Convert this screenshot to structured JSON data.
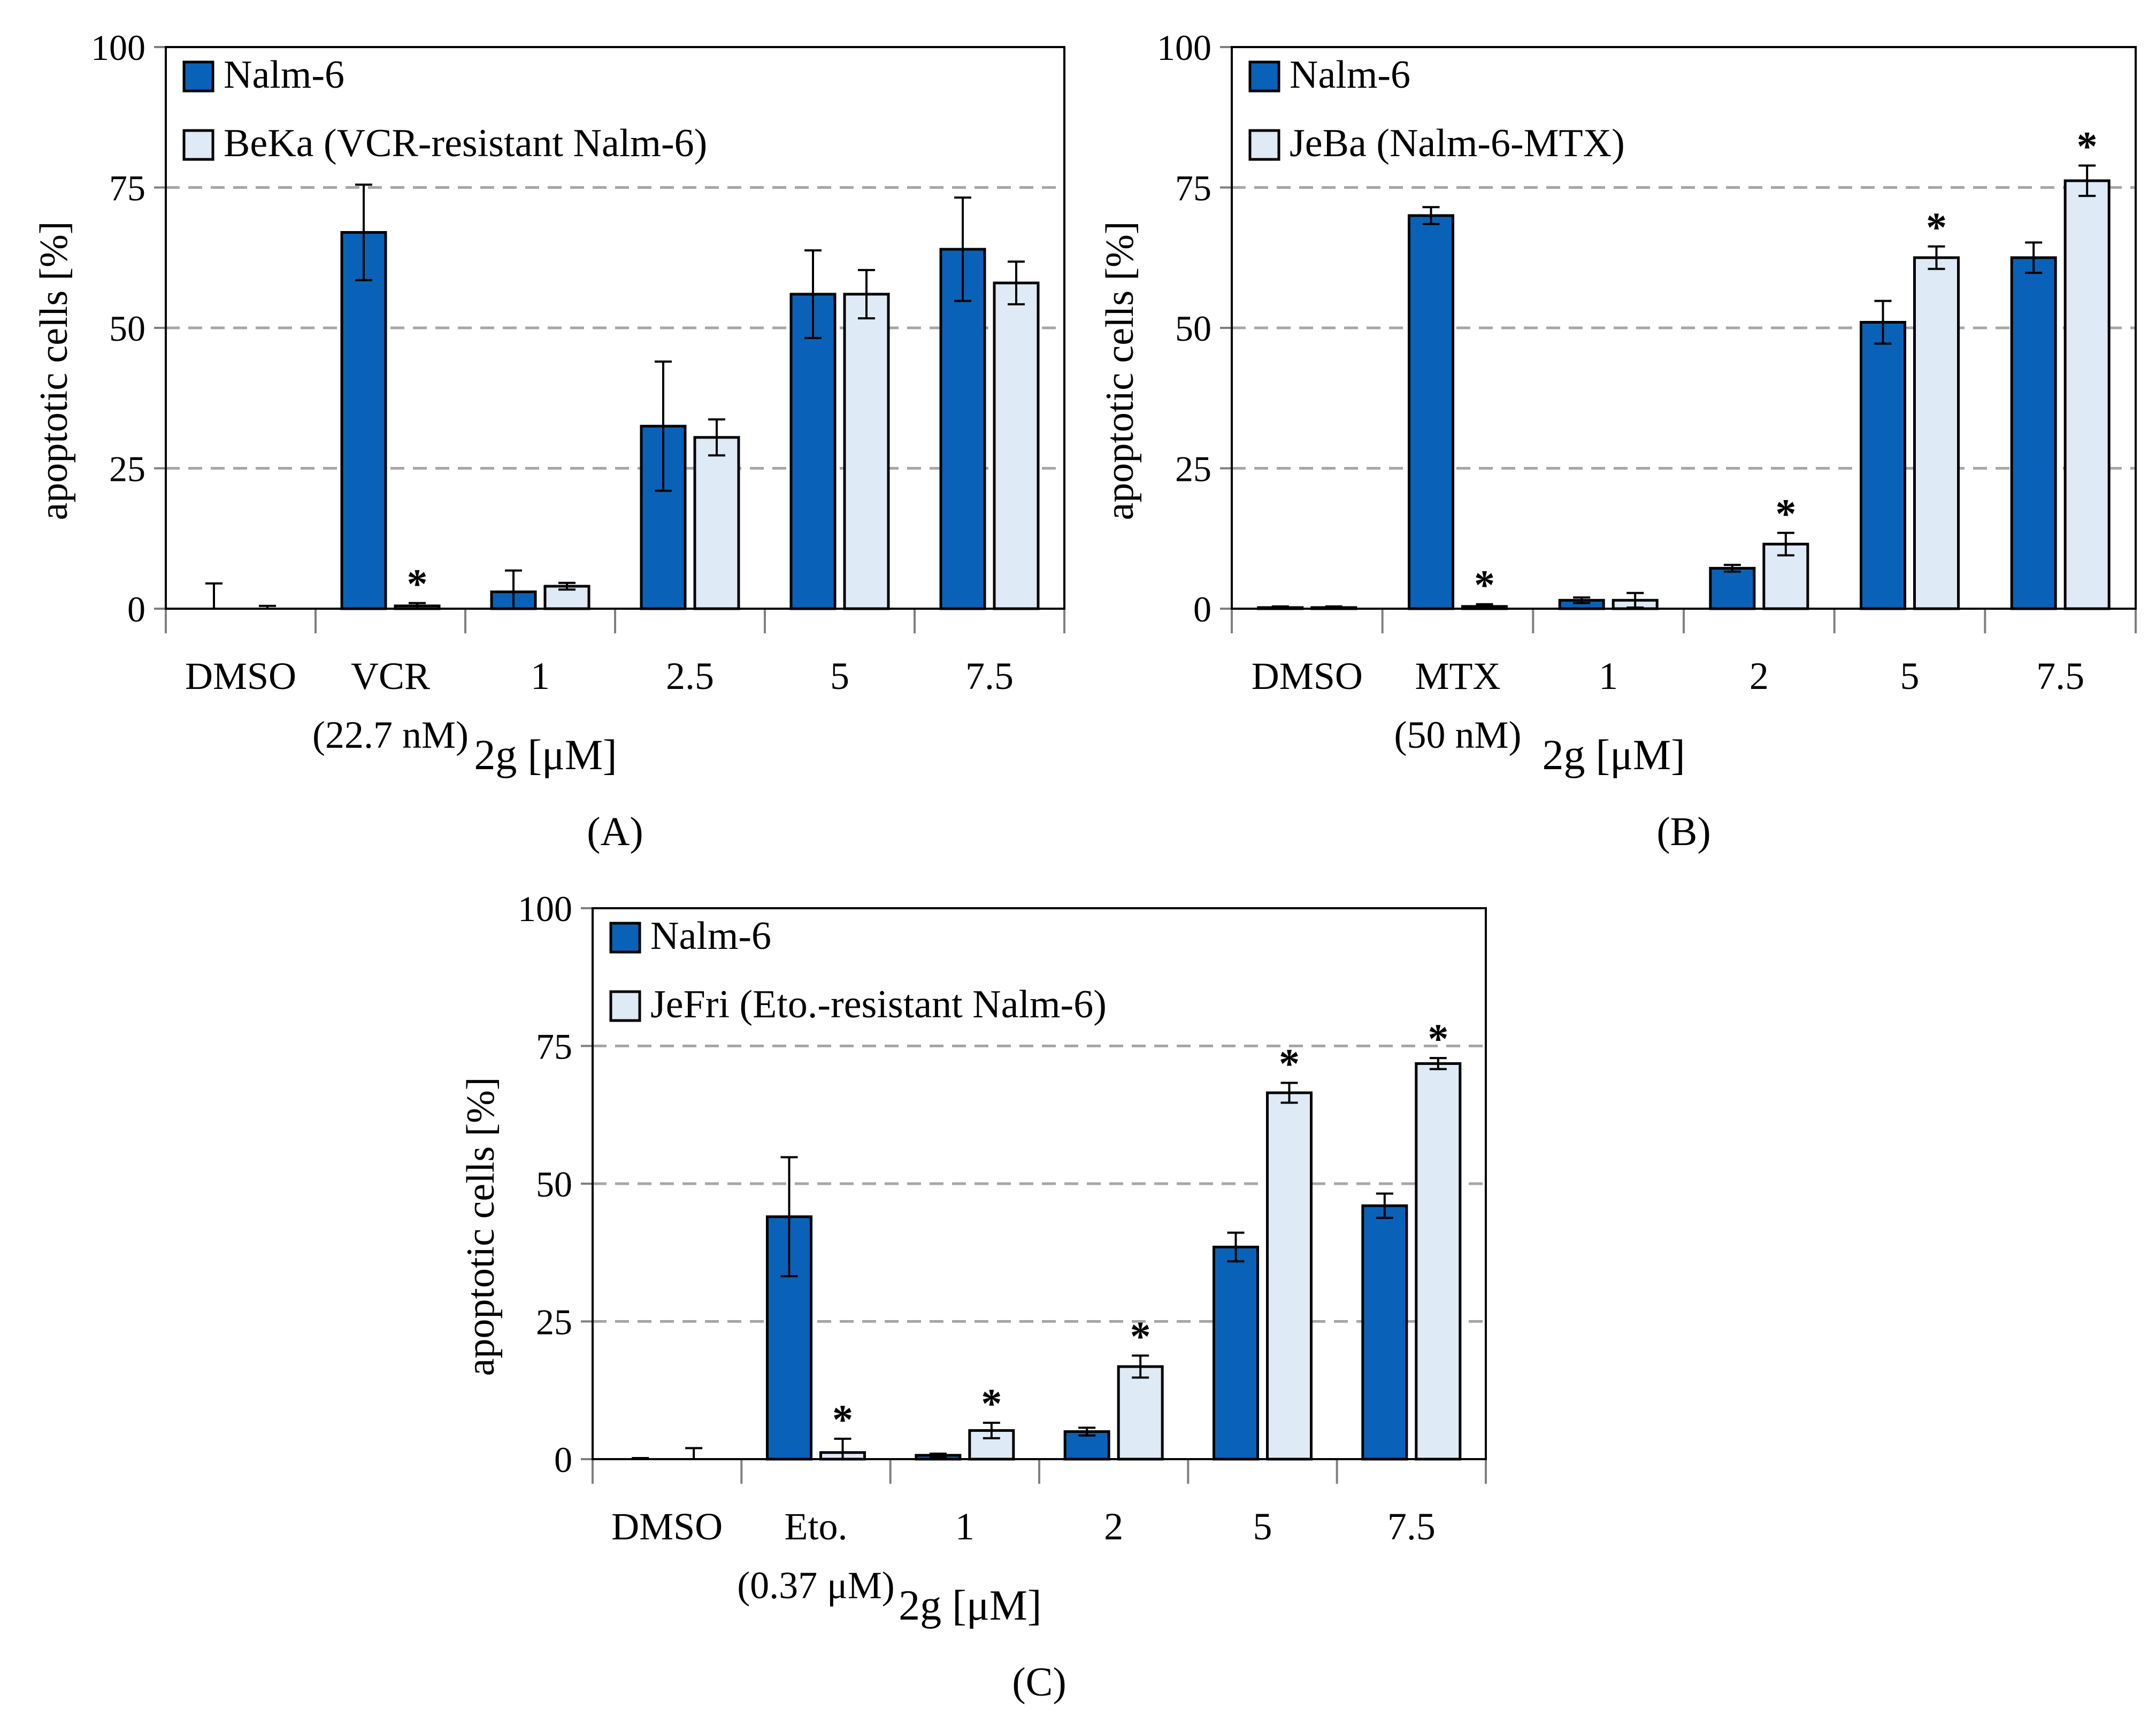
{
  "colors": {
    "nalm": "#0a62b8",
    "resistant": "#deeaf6",
    "grid": "#a6a6a6",
    "axis": "#7f7f7f"
  },
  "chart_data": [
    {
      "id": "A",
      "type": "bar",
      "caption": "(A)",
      "ylabel": "apoptotic cells [%]",
      "xlabel": "2g [μM]",
      "ylim": [
        0,
        100
      ],
      "yticks": [
        "0",
        "25",
        "50",
        "75",
        "100"
      ],
      "yticks_values": [
        0,
        25,
        50,
        75,
        100
      ],
      "grid": [
        25,
        50,
        75
      ],
      "legend_position": "top-left",
      "categories": [
        "DMSO",
        "VCR",
        "1",
        "2.5",
        "5",
        "7.5"
      ],
      "category_sublabels": [
        "",
        "(22.7 nM)",
        "",
        "",
        "",
        ""
      ],
      "series": [
        {
          "name": "Nalm-6",
          "color": "nalm",
          "values": [
            0,
            67,
            3,
            32.5,
            56,
            64
          ],
          "errors": [
            4.5,
            8.5,
            3.8,
            11.5,
            7.8,
            9.2
          ],
          "significant": [
            false,
            false,
            false,
            false,
            false,
            false
          ]
        },
        {
          "name": "BeKa (VCR-resistant Nalm-6)",
          "color": "resistant",
          "values": [
            0,
            0.5,
            4,
            30.5,
            56,
            58
          ],
          "errors": [
            0.5,
            0.5,
            0.6,
            3.2,
            4.3,
            3.8
          ],
          "significant": [
            false,
            true,
            false,
            false,
            false,
            false
          ]
        }
      ],
      "asterisk": "*"
    },
    {
      "id": "B",
      "type": "bar",
      "caption": "(B)",
      "ylabel": "apoptotic cells [%]",
      "xlabel": "2g [μM]",
      "ylim": [
        0,
        100
      ],
      "yticks": [
        "0",
        "25",
        "50",
        "75",
        "100"
      ],
      "yticks_values": [
        0,
        25,
        50,
        75,
        100
      ],
      "grid": [
        25,
        50,
        75
      ],
      "legend_position": "top-left",
      "categories": [
        "DMSO",
        "MTX",
        "1",
        "2",
        "5",
        "7.5"
      ],
      "category_sublabels": [
        "",
        "(50 nM)",
        "",
        "",
        "",
        ""
      ],
      "series": [
        {
          "name": "Nalm-6",
          "color": "nalm",
          "values": [
            0.2,
            70,
            1.5,
            7.2,
            51,
            62.5
          ],
          "errors": [
            0.2,
            1.5,
            0.5,
            0.6,
            3.8,
            2.7
          ],
          "significant": [
            false,
            false,
            false,
            false,
            false,
            false
          ]
        },
        {
          "name": "JeBa (Nalm-6-MTX)",
          "color": "resistant",
          "values": [
            0.2,
            0.4,
            1.5,
            11.5,
            62.5,
            76.2
          ],
          "errors": [
            0.2,
            0.4,
            1.3,
            2,
            2,
            2.7
          ],
          "significant": [
            false,
            true,
            false,
            true,
            true,
            true
          ]
        }
      ],
      "asterisk": "*"
    },
    {
      "id": "C",
      "type": "bar",
      "caption": "(C)",
      "ylabel": "apoptotic cells [%]",
      "xlabel": "2g [μM]",
      "ylim": [
        0,
        100
      ],
      "yticks": [
        "0",
        "25",
        "50",
        "75",
        "100"
      ],
      "yticks_values": [
        0,
        25,
        50,
        75,
        100
      ],
      "grid": [
        25,
        50,
        75
      ],
      "legend_position": "top-left",
      "categories": [
        "DMSO",
        "Eto.",
        "1",
        "2",
        "5",
        "7.5"
      ],
      "category_sublabels": [
        "",
        "(0.37 μM)",
        "",
        "",
        "",
        ""
      ],
      "series": [
        {
          "name": "Nalm-6",
          "color": "nalm",
          "values": [
            0,
            44,
            0.7,
            5,
            38.5,
            46
          ],
          "errors": [
            0.2,
            10.8,
            0.3,
            0.7,
            2.6,
            2.2
          ],
          "significant": [
            false,
            false,
            false,
            false,
            false,
            false
          ]
        },
        {
          "name": "JeFri (Eto.-resistant Nalm-6)",
          "color": "resistant",
          "values": [
            0,
            1.2,
            5.2,
            16.8,
            66.5,
            71.8
          ],
          "errors": [
            2,
            2.5,
            1.4,
            2,
            1.8,
            1
          ],
          "significant": [
            false,
            true,
            true,
            true,
            true,
            true
          ]
        }
      ],
      "asterisk": "*"
    }
  ]
}
